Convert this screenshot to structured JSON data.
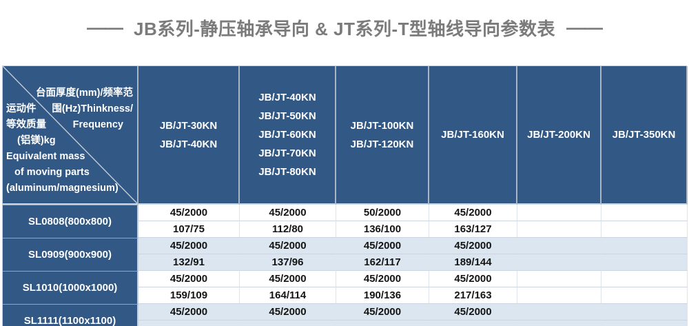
{
  "title": {
    "dash": "——",
    "text": "JB系列-静压轴承导向 & JT系列-T型轴线导向参数表"
  },
  "table": {
    "corner_lines": [
      {
        "left": "",
        "right": "台面厚度(mm)/频率范"
      },
      {
        "left": "运动件",
        "right": "围(Hz)Thinkness/"
      },
      {
        "left": "等效质量",
        "right": "Frequency"
      },
      {
        "left": "(铝镁)kg",
        "right": ""
      },
      {
        "left": "Equivalent mass",
        "right": ""
      },
      {
        "left": "of moving parts",
        "right": ""
      },
      {
        "left": "(aluminum/magnesium)",
        "right": ""
      }
    ],
    "columns": [
      {
        "lines": [
          "JB/JT-30KN",
          "JB/JT-40KN"
        ]
      },
      {
        "lines": [
          "JB/JT-40KN",
          "JB/JT-50KN",
          "JB/JT-60KN",
          "JB/JT-70KN",
          "JB/JT-80KN"
        ]
      },
      {
        "lines": [
          "JB/JT-100KN",
          "JB/JT-120KN"
        ]
      },
      {
        "lines": [
          "JB/JT-160KN"
        ]
      },
      {
        "lines": [
          "JB/JT-200KN"
        ]
      },
      {
        "lines": [
          "JB/JT-350KN"
        ]
      }
    ],
    "rows": [
      {
        "label": "SL0808(800x800)",
        "sub_rows": [
          [
            "45/2000",
            "45/2000",
            "50/2000",
            "45/2000",
            "",
            ""
          ],
          [
            "107/75",
            "112/80",
            "136/100",
            "163/127",
            "",
            ""
          ]
        ]
      },
      {
        "label": "SL0909(900x900)",
        "sub_rows": [
          [
            "45/2000",
            "45/2000",
            "45/2000",
            "45/2000",
            "",
            ""
          ],
          [
            "132/91",
            "137/96",
            "162/117",
            "189/144",
            "",
            ""
          ]
        ]
      },
      {
        "label": "SL1010(1000x1000)",
        "sub_rows": [
          [
            "45/2000",
            "45/2000",
            "45/2000",
            "45/2000",
            "",
            ""
          ],
          [
            "159/109",
            "164/114",
            "190/136",
            "217/163",
            "",
            ""
          ]
        ]
      },
      {
        "label": "SL1111(1100x1100)",
        "sub_rows": [
          [
            "45/2000",
            "45/2000",
            "45/2000",
            "45/2000",
            "",
            ""
          ],
          [
            "",
            "",
            "",
            "",
            "",
            ""
          ]
        ]
      }
    ]
  },
  "colors": {
    "header_blue": "#325885",
    "row_light_blue": "#dce6f1",
    "row_white": "#ffffff",
    "title_gray": "#7b7b7b",
    "grid_line": "#ccd4df"
  }
}
